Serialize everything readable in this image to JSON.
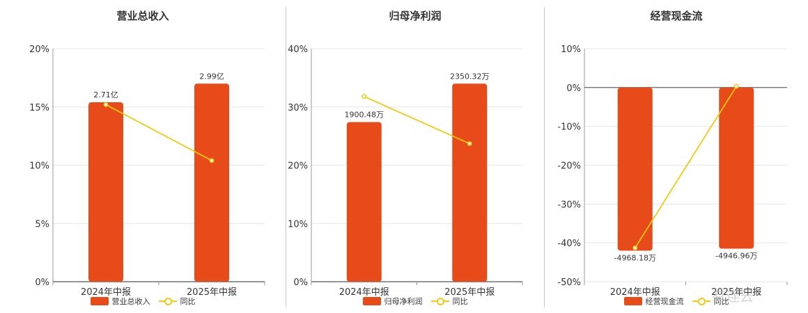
{
  "colors": {
    "bar": "#E84B1A",
    "line": "#F2C811",
    "grid": "#e6e6e6",
    "axis": "#555555",
    "text": "#333333"
  },
  "watermark": "有连云",
  "chart_data": [
    {
      "type": "bar",
      "title": "营业总收入",
      "categories": [
        "2024年中报",
        "2025年中报"
      ],
      "ylim": [
        0,
        20
      ],
      "yticks": [
        0,
        5,
        10,
        15,
        20
      ],
      "tick_suffix": "%",
      "bar_series": {
        "name": "营业总收入",
        "values": [
          15.4,
          17.0
        ],
        "labels": [
          "2.71亿",
          "2.99亿"
        ]
      },
      "line_series": {
        "name": "同比",
        "values": [
          15.2,
          10.4
        ]
      },
      "grid": true,
      "legend": "bottom"
    },
    {
      "type": "bar",
      "title": "归母净利润",
      "categories": [
        "2024年中报",
        "2025年中报"
      ],
      "ylim": [
        0,
        40
      ],
      "yticks": [
        0,
        10,
        20,
        30,
        40
      ],
      "tick_suffix": "%",
      "bar_series": {
        "name": "归母净利润",
        "values": [
          27.4,
          34.0
        ],
        "labels": [
          "1900.48万",
          "2350.32万"
        ]
      },
      "line_series": {
        "name": "同比",
        "values": [
          31.8,
          23.7
        ]
      },
      "grid": true,
      "legend": "bottom"
    },
    {
      "type": "bar",
      "title": "经营现金流",
      "categories": [
        "2024年中报",
        "2025年中报"
      ],
      "ylim": [
        -50,
        10
      ],
      "yticks": [
        -50,
        -40,
        -30,
        -20,
        -10,
        0,
        10
      ],
      "tick_suffix": "%",
      "bar_series": {
        "name": "经营现金流",
        "values": [
          -42.0,
          -41.5
        ],
        "labels": [
          "-4968.18万",
          "-4946.96万"
        ]
      },
      "line_series": {
        "name": "同比",
        "values": [
          -41.3,
          0.3
        ]
      },
      "grid": true,
      "legend": "bottom"
    }
  ]
}
